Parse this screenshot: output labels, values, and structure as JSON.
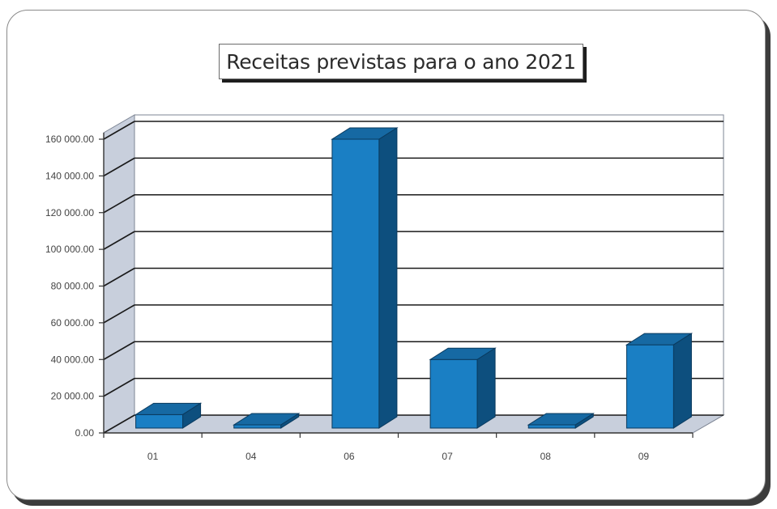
{
  "chart_data": {
    "type": "bar",
    "title": "Receitas previstas para o ano 2021",
    "xlabel": "",
    "ylabel": "",
    "categories": [
      "01",
      "04",
      "06",
      "07",
      "08",
      "09"
    ],
    "values": [
      10000,
      4000,
      160000,
      40000,
      300,
      48000
    ],
    "ylim": [
      0,
      160000
    ],
    "yticks": [
      0,
      20000,
      40000,
      60000,
      80000,
      100000,
      120000,
      140000,
      160000
    ],
    "ytick_labels": [
      "0.00",
      "20 000.00",
      "40 000.00",
      "60 000.00",
      "80 000.00",
      "100 000.00",
      "120 000.00",
      "140 000.00",
      "160 000.00"
    ],
    "grid": true,
    "legend": "none",
    "colors": {
      "bar_front": "#1a7fc4",
      "bar_top": "#1669a3",
      "bar_side": "#0d4f7e",
      "wall": "#c8cfdc",
      "floor": "#c8cfdc",
      "grid": "#1a1a1a"
    }
  }
}
